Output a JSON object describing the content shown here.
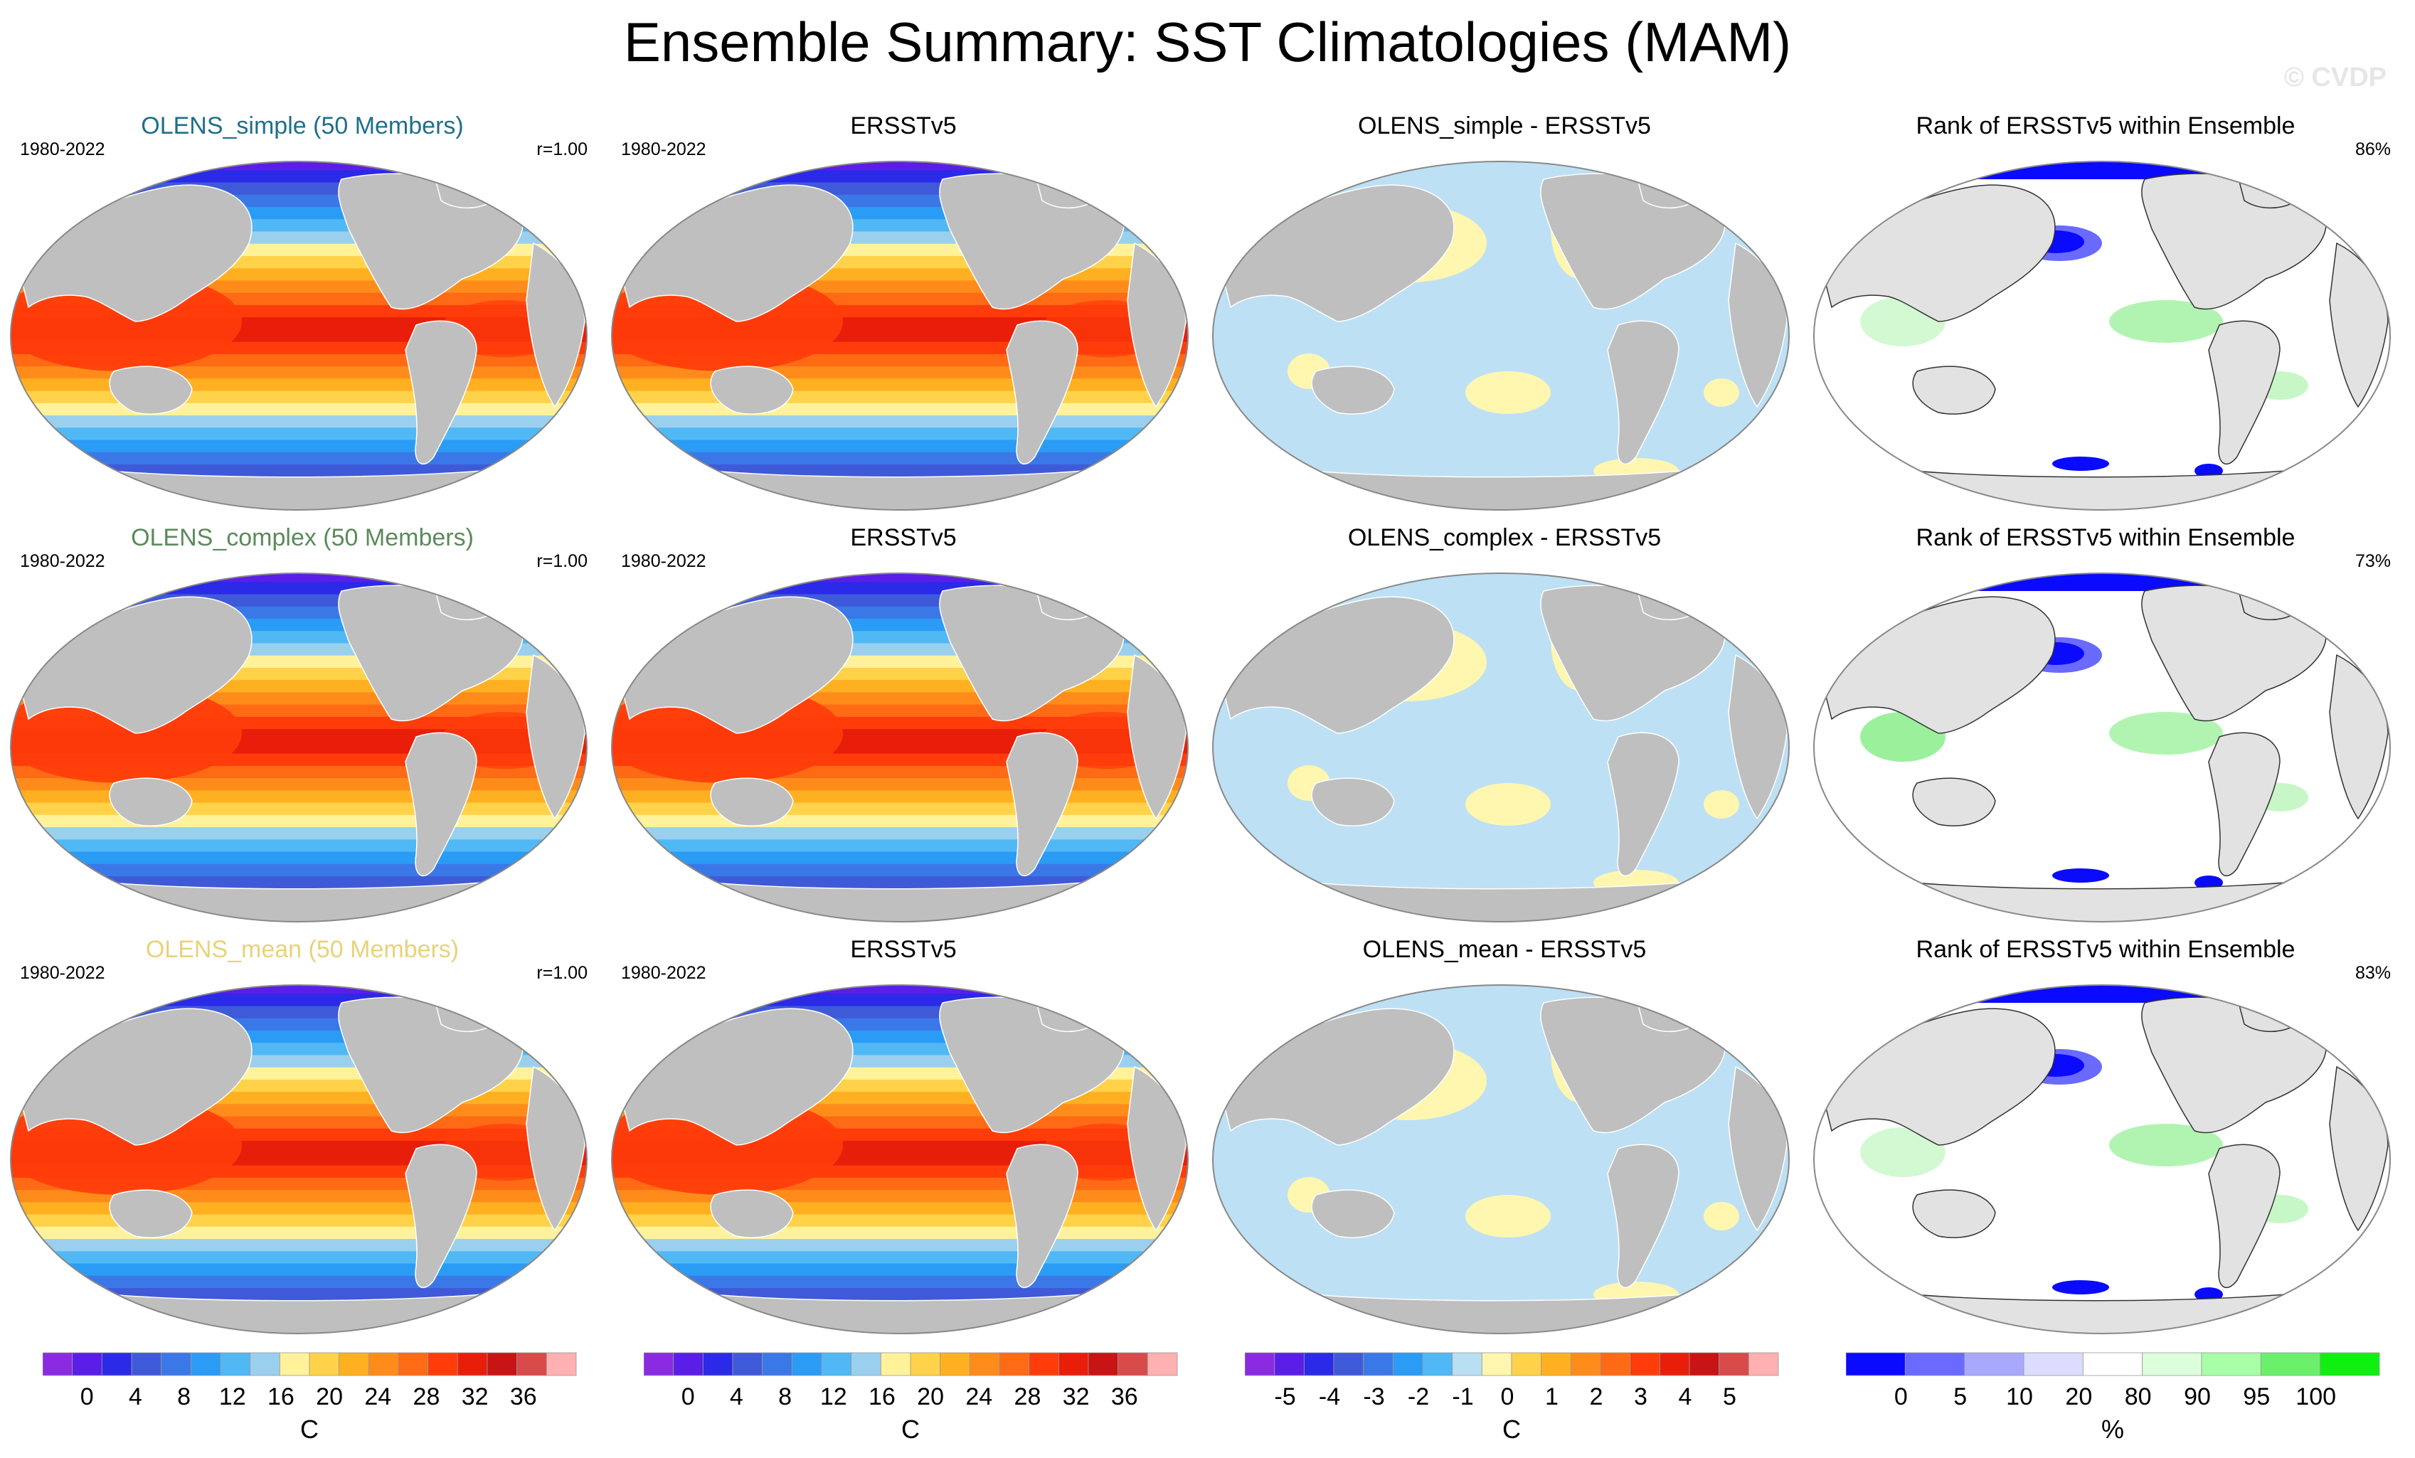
{
  "title": "Ensemble Summary: SST Climatologies (MAM)",
  "watermark": "© CVDP",
  "rows": [
    {
      "model": {
        "title": "OLENS_simple (50 Members)",
        "title_color": "#1f6f8b",
        "period": "1980-2022",
        "corr": "r=1.00"
      },
      "obs": {
        "title": "ERSSTv5",
        "period": "1980-2022"
      },
      "diff": {
        "title": "OLENS_simple - ERSSTv5"
      },
      "rank": {
        "title": "Rank of ERSSTv5 within Ensemble",
        "percent": "86%"
      }
    },
    {
      "model": {
        "title": "OLENS_complex (50 Members)",
        "title_color": "#5b8a5b",
        "period": "1980-2022",
        "corr": "r=1.00"
      },
      "obs": {
        "title": "ERSSTv5",
        "period": "1980-2022"
      },
      "diff": {
        "title": "OLENS_complex - ERSSTv5"
      },
      "rank": {
        "title": "Rank of ERSSTv5 within Ensemble",
        "percent": "73%"
      }
    },
    {
      "model": {
        "title": "OLENS_mean (50 Members)",
        "title_color": "#e8d27a",
        "period": "1980-2022",
        "corr": "r=1.00"
      },
      "obs": {
        "title": "ERSSTv5",
        "period": "1980-2022"
      },
      "diff": {
        "title": "OLENS_mean - ERSSTv5"
      },
      "rank": {
        "title": "Rank of ERSSTv5 within Ensemble",
        "percent": "83%"
      }
    }
  ],
  "colorbars": {
    "sst": {
      "colors": [
        "#8a2be2",
        "#5a1ee8",
        "#2a2ae8",
        "#3f5ad8",
        "#3a78e8",
        "#2a9cf5",
        "#50b8f5",
        "#9ad0ee",
        "#fff29a",
        "#ffd24a",
        "#ffb020",
        "#ff8c1a",
        "#ff6a14",
        "#ff3c0a",
        "#e81e0a",
        "#c81414",
        "#d94a4a",
        "#ffb0b0"
      ],
      "labels": [
        "0",
        "4",
        "8",
        "12",
        "16",
        "20",
        "24",
        "28",
        "32",
        "36"
      ],
      "unit": "C"
    },
    "sst_copy": {
      "colors": [
        "#8a2be2",
        "#5a1ee8",
        "#2a2ae8",
        "#3f5ad8",
        "#3a78e8",
        "#2a9cf5",
        "#50b8f5",
        "#9ad0ee",
        "#fff29a",
        "#ffd24a",
        "#ffb020",
        "#ff8c1a",
        "#ff6a14",
        "#ff3c0a",
        "#e81e0a",
        "#c81414",
        "#d94a4a",
        "#ffb0b0"
      ],
      "labels": [
        "0",
        "4",
        "8",
        "12",
        "16",
        "20",
        "24",
        "28",
        "32",
        "36"
      ],
      "unit": "C"
    },
    "diff": {
      "colors": [
        "#8a2be2",
        "#5a1ee8",
        "#2a2ae8",
        "#3f5ad8",
        "#3a78e8",
        "#2a9cf5",
        "#50b8f5",
        "#b9dff3",
        "#fff6b0",
        "#ffd24a",
        "#ffb020",
        "#ff8c1a",
        "#ff6a14",
        "#ff3c0a",
        "#e81e0a",
        "#c81414",
        "#d94a4a",
        "#ffb0b0"
      ],
      "labels": [
        "-5",
        "-4",
        "-3",
        "-2",
        "-1",
        "0",
        "1",
        "2",
        "3",
        "4",
        "5"
      ],
      "unit": "C"
    },
    "rank": {
      "colors": [
        "#0a0aff",
        "#6a6aff",
        "#a8a8ff",
        "#dcdcff",
        "#ffffff",
        "#dcffdc",
        "#a8ffa8",
        "#6af06a",
        "#10f010"
      ],
      "labels": [
        "0",
        "5",
        "10",
        "20",
        "80",
        "90",
        "95",
        "100"
      ],
      "unit": "%"
    }
  },
  "colors": {
    "land": "#bfbfbf",
    "rank_land": "#e2e2e2",
    "diff_ocean": "#bde0f4",
    "diff_pos": "#fff6b0",
    "rank_green": "#90f090",
    "rank_blue": "#0a0aff"
  }
}
